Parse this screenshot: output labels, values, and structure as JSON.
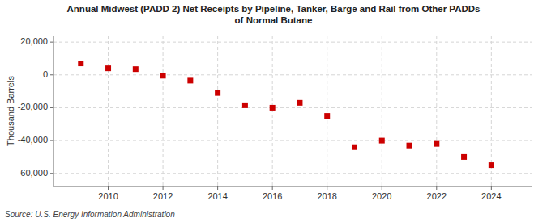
{
  "chart_data": {
    "type": "scatter",
    "title": "Annual Midwest (PADD 2) Net Receipts by Pipeline, Tanker, Barge and Rail from Other PADDs\nof Normal Butane",
    "ylabel": "Thousand Barrels",
    "source": "Source: U.S. Energy Information Administration",
    "x": [
      2009,
      2010,
      2011,
      2012,
      2013,
      2014,
      2015,
      2016,
      2017,
      2018,
      2019,
      2020,
      2021,
      2022,
      2023,
      2024
    ],
    "values": [
      7000,
      4000,
      3500,
      -500,
      -3500,
      -11000,
      -18500,
      -20000,
      -17000,
      -25000,
      -44000,
      -40000,
      -43000,
      -42000,
      -50000,
      -55000
    ],
    "color": "#cc0000",
    "marker": "square",
    "xlim": [
      2008,
      2025.5
    ],
    "xticks": [
      2010,
      2012,
      2014,
      2016,
      2018,
      2020,
      2022,
      2024
    ],
    "ylim": [
      -68000,
      24000
    ],
    "yticks": [
      {
        "value": -60000,
        "label": "-60,000"
      },
      {
        "value": -40000,
        "label": "-40,000"
      },
      {
        "value": -20000,
        "label": "-20,000"
      },
      0,
      {
        "value": 20000,
        "label": "20,000"
      }
    ],
    "grid": true
  }
}
